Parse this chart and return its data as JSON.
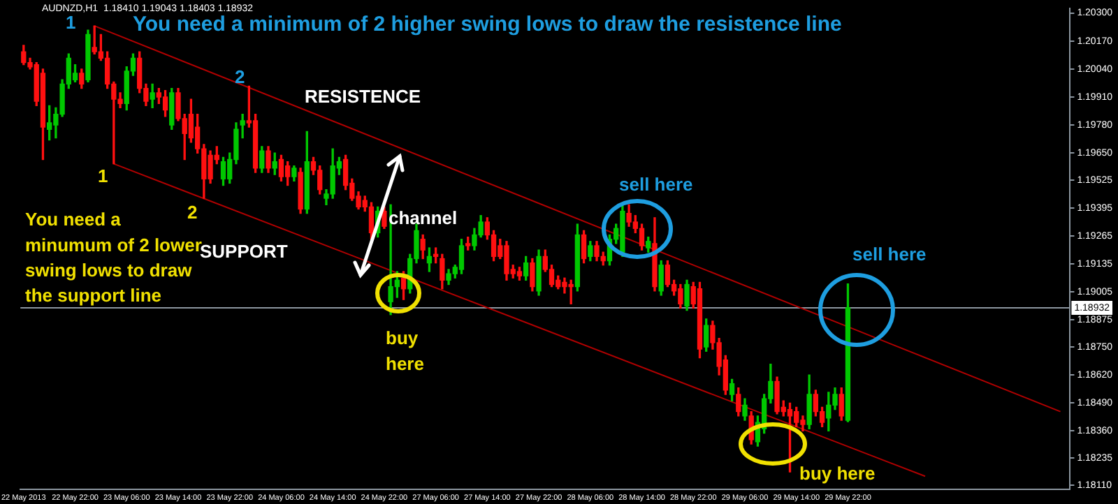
{
  "chart_data": {
    "type": "candlestick",
    "categories": [
      "22 May 2013",
      null,
      null,
      null,
      null,
      null,
      null,
      null,
      "22 May 22:00",
      null,
      null,
      null,
      null,
      null,
      null,
      null,
      "23 May 06:00",
      null,
      null,
      null,
      null,
      null,
      null,
      null,
      "23 May 14:00",
      null,
      null,
      null,
      null,
      null,
      null,
      null,
      "23 May 22:00",
      null,
      null,
      null,
      null,
      null,
      null,
      null,
      "24 May 06:00",
      null,
      null,
      null,
      null,
      null,
      null,
      null,
      "24 May 14:00",
      null,
      null,
      null,
      null,
      null,
      null,
      null,
      "24 May 22:00",
      null,
      null,
      null,
      null,
      null,
      null,
      null,
      "27 May 06:00",
      null,
      null,
      null,
      null,
      null,
      null,
      null,
      "27 May 14:00",
      null,
      null,
      null,
      null,
      null,
      null,
      null,
      "27 May 22:00",
      null,
      null,
      null,
      null,
      null,
      null,
      null,
      "28 May 06:00",
      null,
      null,
      null,
      null,
      null,
      null,
      null,
      "28 May 14:00",
      null,
      null,
      null,
      null,
      null,
      null,
      null,
      "28 May 22:00",
      null,
      null,
      null,
      null,
      null,
      null,
      null,
      "29 May 06:00",
      null,
      null,
      null,
      null,
      null,
      null,
      null,
      "29 May 14:00",
      null,
      null,
      null,
      null,
      null,
      null,
      null,
      "29 May 22:00",
      null,
      null,
      null,
      null,
      null,
      null,
      null,
      null,
      null,
      null,
      null,
      null,
      null,
      null,
      null,
      null,
      null,
      null,
      null,
      null,
      null,
      null,
      null,
      null,
      null,
      null,
      null,
      null,
      null,
      null,
      null,
      null,
      null,
      null
    ],
    "ohlc": [
      [
        1.2012,
        1.2015,
        1.2006,
        1.2007
      ],
      [
        1.2007,
        1.2009,
        1.2004,
        1.2005
      ],
      [
        1.2006,
        1.2007,
        1.1987,
        1.1989
      ],
      [
        1.2002,
        1.2004,
        1.1962,
        1.1977
      ],
      [
        1.1976,
        1.1987,
        1.1971,
        1.1979
      ],
      [
        1.1978,
        1.1986,
        1.1972,
        1.1983
      ],
      [
        1.1983,
        1.1999,
        1.1982,
        1.1997
      ],
      [
        1.1997,
        1.2011,
        1.1995,
        1.2009
      ],
      [
        1.1999,
        1.2006,
        1.1998,
        1.2002
      ],
      [
        1.2002,
        1.2004,
        1.1995,
        1.1997
      ],
      [
        1.1999,
        1.2022,
        1.1998,
        1.202
      ],
      [
        1.2014,
        1.2024,
        1.2011,
        1.2012
      ],
      [
        1.2012,
        1.202,
        1.2008,
        1.2009
      ],
      [
        1.2009,
        1.2012,
        1.1995,
        1.1997
      ],
      [
        1.1997,
        1.1998,
        1.196,
        1.199
      ],
      [
        1.199,
        1.1993,
        1.1986,
        1.1988
      ],
      [
        1.1988,
        1.2005,
        1.1985,
        1.2003
      ],
      [
        1.2003,
        1.2011,
        1.2001,
        1.2009
      ],
      [
        1.2009,
        1.2012,
        1.1993,
        1.1995
      ],
      [
        1.1995,
        1.1997,
        1.1987,
        1.1989
      ],
      [
        1.199,
        1.1997,
        1.1986,
        1.1993
      ],
      [
        1.1993,
        1.1995,
        1.1988,
        1.1991
      ],
      [
        1.1991,
        1.1994,
        1.1982,
        1.1985
      ],
      [
        1.1978,
        1.1995,
        1.1976,
        1.1993
      ],
      [
        1.1993,
        1.1995,
        1.198,
        1.1981
      ],
      [
        1.1981,
        1.1983,
        1.1962,
        1.1974
      ],
      [
        1.1983,
        1.199,
        1.197,
        1.1972
      ],
      [
        1.1977,
        1.1983,
        1.1965,
        1.1967
      ],
      [
        1.1967,
        1.1969,
        1.1944,
        1.1953
      ],
      [
        1.1964,
        1.1966,
        1.1951,
        1.1953
      ],
      [
        1.1964,
        1.1968,
        1.196,
        1.1962
      ],
      [
        1.1953,
        1.1963,
        1.195,
        1.1961
      ],
      [
        1.1953,
        1.1965,
        1.1951,
        1.1962
      ],
      [
        1.1962,
        1.1979,
        1.196,
        1.1976
      ],
      [
        1.1978,
        1.1983,
        1.1972,
        1.198
      ],
      [
        1.198,
        1.1996,
        1.1977,
        1.1979
      ],
      [
        1.198,
        1.1983,
        1.1956,
        1.1958
      ],
      [
        1.1958,
        1.1968,
        1.1956,
        1.1966
      ],
      [
        1.1966,
        1.1968,
        1.1956,
        1.1958
      ],
      [
        1.1958,
        1.1965,
        1.1955,
        1.1961
      ],
      [
        1.1962,
        1.1964,
        1.1952,
        1.1954
      ],
      [
        1.1959,
        1.1961,
        1.195,
        1.1954
      ],
      [
        1.1954,
        1.1959,
        1.1952,
        1.1958
      ],
      [
        1.1956,
        1.1958,
        1.1937,
        1.1939
      ],
      [
        1.1939,
        1.1975,
        1.1937,
        1.1961
      ],
      [
        1.1961,
        1.1963,
        1.1955,
        1.1957
      ],
      [
        1.1957,
        1.1959,
        1.1946,
        1.1948
      ],
      [
        1.1944,
        1.1948,
        1.1941,
        1.1946
      ],
      [
        1.1946,
        1.1967,
        1.1944,
        1.1959
      ],
      [
        1.1958,
        1.1963,
        1.1955,
        1.1961
      ],
      [
        1.1962,
        1.1964,
        1.1948,
        1.195
      ],
      [
        1.1951,
        1.1953,
        1.1943,
        1.1944
      ],
      [
        1.1945,
        1.1947,
        1.1939,
        1.194
      ],
      [
        1.1943,
        1.1945,
        1.1938,
        1.194
      ],
      [
        1.194,
        1.1942,
        1.1925,
        1.1928
      ],
      [
        1.1928,
        1.194,
        1.1926,
        1.1938
      ],
      [
        1.1938,
        1.194,
        1.193,
        1.1931
      ],
      [
        1.1896,
        1.1941,
        1.189,
        1.1903
      ],
      [
        1.1903,
        1.191,
        1.1898,
        1.1906
      ],
      [
        1.1907,
        1.191,
        1.1897,
        1.1902
      ],
      [
        1.1902,
        1.1918,
        1.19,
        1.1916
      ],
      [
        1.1916,
        1.1932,
        1.1914,
        1.1929
      ],
      [
        1.1925,
        1.1927,
        1.1916,
        1.192
      ],
      [
        1.1914,
        1.1921,
        1.191,
        1.1917
      ],
      [
        1.1918,
        1.1921,
        1.1914,
        1.1917
      ],
      [
        1.1916,
        1.1918,
        1.1902,
        1.1906
      ],
      [
        1.1906,
        1.1911,
        1.1904,
        1.1909
      ],
      [
        1.1909,
        1.1913,
        1.1907,
        1.1912
      ],
      [
        1.1911,
        1.1925,
        1.1909,
        1.1922
      ],
      [
        1.1923,
        1.1926,
        1.192,
        1.1922
      ],
      [
        1.1922,
        1.193,
        1.192,
        1.1927
      ],
      [
        1.1927,
        1.1936,
        1.1926,
        1.1933
      ],
      [
        1.1933,
        1.1935,
        1.1925,
        1.1927
      ],
      [
        1.1927,
        1.1929,
        1.1915,
        1.1917
      ],
      [
        1.1922,
        1.1925,
        1.1916,
        1.1917
      ],
      [
        1.1922,
        1.1924,
        1.1906,
        1.1909
      ],
      [
        1.1911,
        1.1913,
        1.1907,
        1.1909
      ],
      [
        1.191,
        1.1912,
        1.1906,
        1.1908
      ],
      [
        1.1908,
        1.1917,
        1.1906,
        1.1914
      ],
      [
        1.1914,
        1.1916,
        1.1901,
        1.1903
      ],
      [
        1.1901,
        1.192,
        1.1899,
        1.1917
      ],
      [
        1.1917,
        1.192,
        1.191,
        1.1911
      ],
      [
        1.1911,
        1.1913,
        1.1903,
        1.1904
      ],
      [
        1.1906,
        1.1908,
        1.1902,
        1.1903
      ],
      [
        1.1905,
        1.1907,
        1.19,
        1.1903
      ],
      [
        1.1904,
        1.1906,
        1.1895,
        1.1903
      ],
      [
        1.1903,
        1.1932,
        1.1901,
        1.1927
      ],
      [
        1.1927,
        1.1929,
        1.1914,
        1.1916
      ],
      [
        1.1917,
        1.1924,
        1.1915,
        1.1922
      ],
      [
        1.1922,
        1.1924,
        1.1915,
        1.1917
      ],
      [
        1.1917,
        1.1919,
        1.1913,
        1.1915
      ],
      [
        1.1915,
        1.1927,
        1.1913,
        1.1925
      ],
      [
        1.1925,
        1.1932,
        1.1923,
        1.193
      ],
      [
        1.1919,
        1.1941,
        1.1917,
        1.1938
      ],
      [
        1.1937,
        1.1941,
        1.1931,
        1.1933
      ],
      [
        1.1933,
        1.1936,
        1.1928,
        1.193
      ],
      [
        1.193,
        1.1932,
        1.192,
        1.1922
      ],
      [
        1.1921,
        1.1926,
        1.1919,
        1.1924
      ],
      [
        1.1923,
        1.1935,
        1.1901,
        1.1903
      ],
      [
        1.1901,
        1.1915,
        1.1899,
        1.1913
      ],
      [
        1.1913,
        1.1915,
        1.1903,
        1.1904
      ],
      [
        1.1904,
        1.1906,
        1.1899,
        1.1901
      ],
      [
        1.1902,
        1.1904,
        1.1893,
        1.1895
      ],
      [
        1.1894,
        1.1906,
        1.1892,
        1.1904
      ],
      [
        1.1903,
        1.1905,
        1.1893,
        1.1895
      ],
      [
        1.1902,
        1.1905,
        1.187,
        1.1874
      ],
      [
        1.1875,
        1.1888,
        1.1873,
        1.1885
      ],
      [
        1.1885,
        1.1887,
        1.1874,
        1.1877
      ],
      [
        1.1877,
        1.1879,
        1.1862,
        1.1866
      ],
      [
        1.1869,
        1.1871,
        1.1853,
        1.1855
      ],
      [
        1.1853,
        1.186,
        1.185,
        1.1858
      ],
      [
        1.1853,
        1.1856,
        1.1843,
        1.1845
      ],
      [
        1.1843,
        1.1851,
        1.1841,
        1.1848
      ],
      [
        1.1843,
        1.1845,
        1.183,
        1.1832
      ],
      [
        1.1831,
        1.1843,
        1.1829,
        1.184
      ],
      [
        1.1837,
        1.1853,
        1.1835,
        1.1851
      ],
      [
        1.1851,
        1.1867,
        1.1849,
        1.1859
      ],
      [
        1.1859,
        1.1861,
        1.1844,
        1.1845
      ],
      [
        1.1847,
        1.185,
        1.1843,
        1.1845
      ],
      [
        1.1846,
        1.1849,
        1.1817,
        1.1843
      ],
      [
        1.1845,
        1.1847,
        1.1838,
        1.184
      ],
      [
        1.1841,
        1.1843,
        1.1836,
        1.1839
      ],
      [
        1.1839,
        1.1862,
        1.1837,
        1.1853
      ],
      [
        1.1853,
        1.1855,
        1.1843,
        1.1845
      ],
      [
        1.1845,
        1.1847,
        1.1838,
        1.184
      ],
      [
        1.1842,
        1.1854,
        1.1836,
        1.1848
      ],
      [
        1.1848,
        1.1856,
        1.1846,
        1.1853
      ],
      [
        1.1853,
        1.1856,
        1.1841,
        1.1843
      ],
      [
        1.1841,
        1.19043,
        1.18403,
        1.18932
      ],
      null,
      null,
      null,
      null,
      null,
      null,
      null,
      null,
      null,
      null,
      null,
      null,
      null,
      null,
      null,
      null,
      null,
      null,
      null,
      null,
      null,
      null,
      null,
      null,
      null,
      null,
      null,
      null,
      null,
      null,
      null,
      null,
      null,
      null
    ],
    "series": [
      {
        "type": "line",
        "color": "#b00000",
        "values": [
          null,
          null,
          null,
          null,
          null,
          null,
          null,
          null,
          null,
          null,
          null,
          1.2024,
          null,
          null,
          null,
          null,
          null,
          null,
          null,
          null,
          null,
          null,
          null,
          null,
          null,
          null,
          null,
          null,
          null,
          null,
          null,
          null,
          null,
          null,
          null,
          null,
          null,
          null,
          null,
          null,
          null,
          null,
          null,
          null,
          null,
          null,
          null,
          null,
          null,
          null,
          null,
          null,
          null,
          null,
          null,
          null,
          null,
          null,
          null,
          null,
          null,
          null,
          null,
          null,
          null,
          null,
          null,
          null,
          null,
          null,
          null,
          null,
          null,
          null,
          null,
          null,
          null,
          null,
          null,
          null,
          null,
          null,
          null,
          null,
          null,
          null,
          null,
          null,
          null,
          null,
          null,
          null,
          null,
          null,
          null,
          null,
          null,
          null,
          null,
          null,
          null,
          null,
          null,
          null,
          null,
          null,
          null,
          null,
          null,
          null,
          null,
          null,
          null,
          null,
          null,
          null,
          null,
          null,
          null,
          null,
          null,
          null,
          null,
          null,
          null,
          null,
          null,
          null,
          null,
          null,
          null,
          null,
          null,
          null,
          null,
          null,
          null,
          null,
          null,
          null,
          null,
          null,
          null,
          null,
          null,
          null,
          null,
          null,
          null,
          null,
          null,
          null,
          null,
          null,
          null,
          null,
          null,
          null,
          null,
          null,
          null,
          1.1845,
          null
        ]
      },
      {
        "type": "line",
        "color": "#b00000",
        "values": [
          null,
          null,
          null,
          null,
          null,
          null,
          null,
          null,
          null,
          null,
          null,
          null,
          null,
          null,
          1.196,
          null,
          null,
          null,
          null,
          null,
          null,
          null,
          null,
          null,
          null,
          null,
          null,
          null,
          null,
          null,
          null,
          null,
          null,
          null,
          null,
          null,
          null,
          null,
          null,
          null,
          null,
          null,
          null,
          null,
          null,
          null,
          null,
          null,
          null,
          null,
          null,
          null,
          null,
          null,
          null,
          null,
          null,
          null,
          null,
          null,
          null,
          null,
          null,
          null,
          null,
          null,
          null,
          null,
          null,
          null,
          null,
          null,
          null,
          null,
          null,
          null,
          null,
          null,
          null,
          null,
          null,
          null,
          null,
          null,
          null,
          null,
          null,
          null,
          null,
          null,
          null,
          null,
          null,
          null,
          null,
          null,
          null,
          null,
          null,
          null,
          null,
          null,
          null,
          null,
          null,
          null,
          null,
          null,
          null,
          null,
          null,
          null,
          null,
          null,
          null,
          null,
          null,
          null,
          null,
          null,
          null,
          null,
          null,
          null,
          null,
          null,
          null,
          null,
          null,
          null,
          null,
          null,
          null,
          null,
          null,
          null,
          null,
          null,
          null,
          null,
          1.1815,
          null,
          null,
          null,
          null,
          null,
          null,
          null,
          null,
          null,
          null,
          null,
          null,
          null,
          null,
          null,
          null,
          null,
          null,
          null,
          null,
          null,
          null
        ]
      }
    ],
    "ylim": [
      1.1809,
      1.2032
    ],
    "yticks": [
      {
        "value": 1.203,
        "label": "1.20300"
      },
      {
        "value": 1.2017,
        "label": "1.20170"
      },
      {
        "value": 1.2004,
        "label": "1.20040"
      },
      {
        "value": 1.1991,
        "label": "1.19910"
      },
      {
        "value": 1.1978,
        "label": "1.19780"
      },
      {
        "value": 1.1965,
        "label": "1.19650"
      },
      {
        "value": 1.19525,
        "label": "1.19525"
      },
      {
        "value": 1.19395,
        "label": "1.19395"
      },
      {
        "value": 1.19265,
        "label": "1.19265"
      },
      {
        "value": 1.19135,
        "label": "1.19135"
      },
      {
        "value": 1.19005,
        "label": "1.19005"
      },
      {
        "value": 1.18875,
        "label": "1.18875"
      },
      {
        "value": 1.1875,
        "label": "1.18750"
      },
      {
        "value": 1.1862,
        "label": "1.18620"
      },
      {
        "value": 1.1849,
        "label": "1.18490"
      },
      {
        "value": 1.1836,
        "label": "1.18360"
      },
      {
        "value": 1.18235,
        "label": "1.18235"
      },
      {
        "value": 1.1811,
        "label": "1.18110"
      }
    ],
    "ref_lines": [
      {
        "axis": "y",
        "value": 1.18932,
        "label": "1.18932",
        "color": "#8c96a0"
      }
    ],
    "annotations": [
      "AUDNZD,H1  1.18410 1.19043 1.18403 1.18932",
      "You need a minimum of 2 higher swing lows to draw the resistence line",
      "1",
      "2",
      "RESISTENCE",
      "1",
      "2",
      "You need a minumum of 2 lower swing lows to draw the support line",
      "SUPPORT",
      "channel",
      "buy here",
      "sell here",
      "sell here",
      "buy here"
    ]
  }
}
